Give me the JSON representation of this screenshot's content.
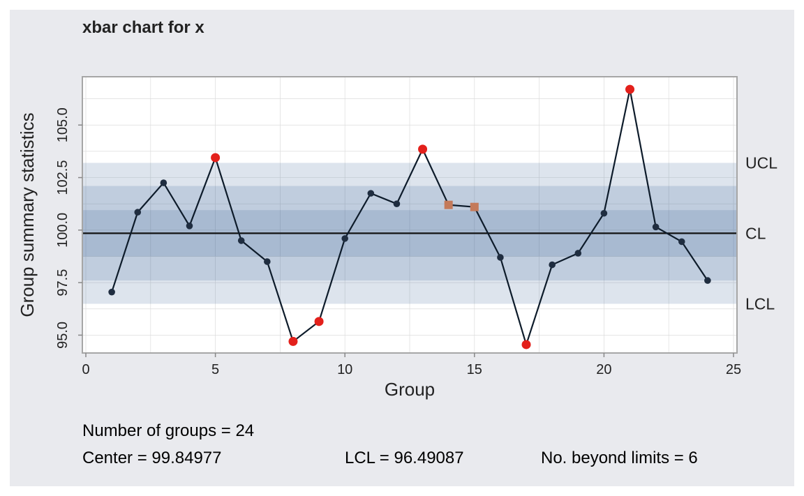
{
  "chart_data": {
    "type": "line",
    "title": "xbar chart for x",
    "xlabel": "Group",
    "ylabel": "Group summary statistics",
    "xlim": [
      0,
      25
    ],
    "ylim": [
      94.15,
      107.3
    ],
    "xticks": [
      0,
      5,
      10,
      15,
      20,
      25
    ],
    "yticks": [
      95.0,
      97.5,
      100.0,
      102.5,
      105.0
    ],
    "ytick_labels": [
      "95.0",
      "97.5",
      "100.0",
      "102.5",
      "105.0"
    ],
    "center": 99.84977,
    "lcl": 96.49087,
    "ucl": 103.2,
    "zones": [
      {
        "lower": 96.49087,
        "upper": 103.2
      },
      {
        "lower": 97.6,
        "upper": 102.1
      },
      {
        "lower": 98.75,
        "upper": 100.95
      }
    ],
    "limit_labels": [
      "UCL",
      "CL",
      "LCL"
    ],
    "grid": true,
    "series": [
      {
        "x": [
          1,
          2,
          3,
          4,
          5,
          6,
          7,
          8,
          9,
          10,
          11,
          12,
          13,
          14,
          15,
          16,
          17,
          18,
          19,
          20,
          21,
          22,
          23,
          24
        ],
        "values": [
          97.05,
          100.85,
          102.25,
          100.2,
          103.45,
          99.5,
          98.5,
          94.7,
          95.65,
          99.6,
          101.75,
          101.25,
          103.85,
          101.2,
          101.1,
          98.7,
          94.55,
          98.35,
          98.9,
          100.8,
          106.7,
          100.15,
          99.45,
          97.6
        ]
      }
    ],
    "point_status": [
      "normal",
      "normal",
      "normal",
      "normal",
      "beyond",
      "normal",
      "normal",
      "beyond",
      "beyond",
      "normal",
      "normal",
      "normal",
      "beyond",
      "violating",
      "violating",
      "normal",
      "beyond",
      "normal",
      "normal",
      "normal",
      "beyond",
      "normal",
      "normal",
      "normal"
    ],
    "colors": {
      "panel_bg": "#e9eaee",
      "plot_bg": "#ffffff",
      "zone": "#2c5591",
      "line": "#0d1b2a",
      "point": "#1f2d40",
      "beyond": "#e3201b",
      "violating": "#c47a5a",
      "grid": "#dcdcdc",
      "border": "#a6a6a6"
    }
  },
  "stats": {
    "number_of_groups": "Number of groups = 24",
    "center": "Center = 99.84977",
    "lcl": "LCL = 96.49087",
    "beyond": "No. beyond limits = 6"
  }
}
